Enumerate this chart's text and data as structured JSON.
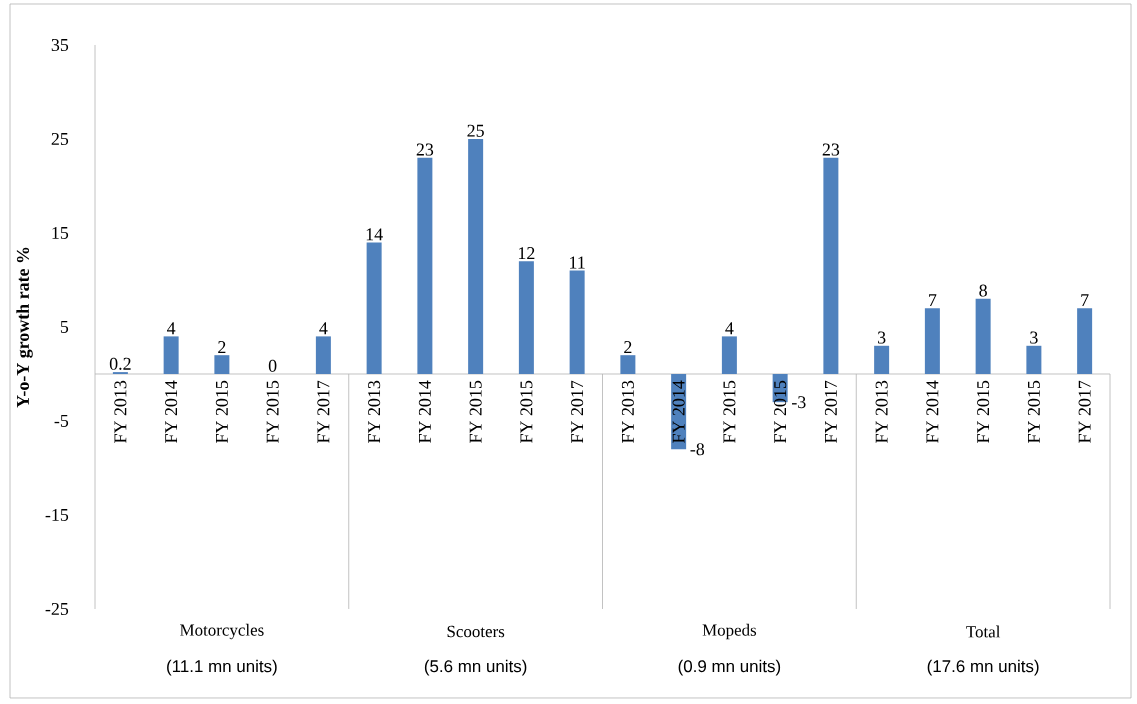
{
  "chart_data": {
    "type": "bar",
    "ylabel": "Y-o-Y growth rate %",
    "categories": [
      "FY 2013",
      "FY 2014",
      "FY 2015",
      "FY 2015",
      "FY 2017",
      "FY 2013",
      "FY 2014",
      "FY 2015",
      "FY 2015",
      "FY 2017",
      "FY 2013",
      "FY 2014",
      "FY 2015",
      "FY 2015",
      "FY 2017",
      "FY 2013",
      "FY 2014",
      "FY 2015",
      "FY 2015",
      "FY 2017"
    ],
    "values": [
      0.2,
      4,
      2,
      0,
      4,
      14,
      23,
      25,
      12,
      11,
      2,
      -8,
      4,
      -3,
      23,
      3,
      7,
      8,
      3,
      7
    ],
    "color": "#4f81bd",
    "data_labels": true,
    "ylim": [
      -25,
      35
    ],
    "yticks": [
      -25,
      -15,
      -5,
      5,
      15,
      25,
      35
    ],
    "annotations": [
      "Motorcycles",
      "Scooters",
      "Mopeds",
      "Total",
      "(11.1 mn units)",
      "(5.6 mn units)",
      "(0.9 mn units)",
      "(17.6 mn units)"
    ]
  }
}
